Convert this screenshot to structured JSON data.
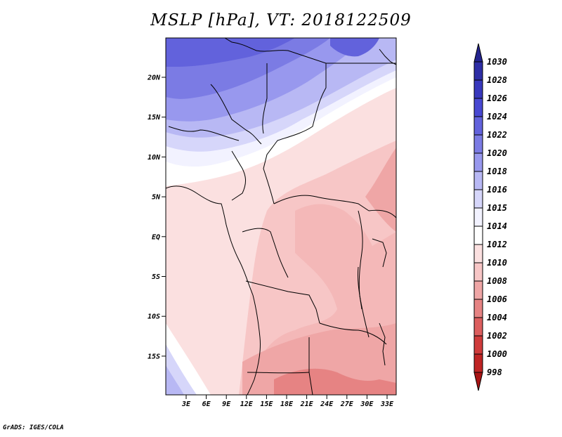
{
  "title": "MSLP [hPa], VT: 2018122509",
  "credit": "GrADS: IGES/COLA",
  "map": {
    "variable": "MSLP",
    "units": "hPa",
    "valid_time": "2018122509",
    "lat_labels": [
      "20N",
      "15N",
      "10N",
      "5N",
      "EQ",
      "5S",
      "10S",
      "15S"
    ],
    "lon_labels": [
      "3E",
      "6E",
      "9E",
      "12E",
      "15E",
      "18E",
      "21E",
      "24E",
      "27E",
      "30E",
      "33E"
    ]
  },
  "colorbar": {
    "labels": [
      "1030",
      "1028",
      "1026",
      "1024",
      "1022",
      "1020",
      "1018",
      "1016",
      "1015",
      "1014",
      "1012",
      "1010",
      "1008",
      "1006",
      "1004",
      "1002",
      "1000",
      "998"
    ],
    "colors": [
      "#24248f",
      "#2e2ea6",
      "#3838bd",
      "#4848d2",
      "#6262dc",
      "#7b7be4",
      "#9898ee",
      "#b8b8f4",
      "#d6d6fa",
      "#f2f2ff",
      "#ffffff",
      "#fbe0e0",
      "#f7c6c6",
      "#efa6a6",
      "#e68383",
      "#dc5e5e",
      "#cf3b3b",
      "#bf2424",
      "#a81414"
    ]
  }
}
